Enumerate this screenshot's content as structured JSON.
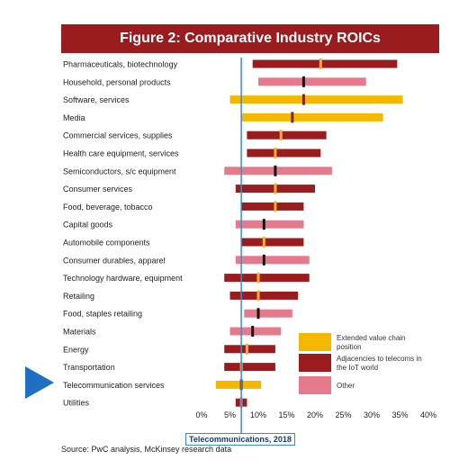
{
  "chart_data": {
    "type": "range-bar",
    "title": "Figure 2: Comparative Industry ROICs",
    "xlim": [
      0,
      40
    ],
    "xticks": [
      "0%",
      "5%",
      "10%",
      "15%",
      "20%",
      "25%",
      "30%",
      "35%",
      "40%"
    ],
    "xtick_values": [
      0,
      5,
      10,
      15,
      20,
      25,
      30,
      35,
      40
    ],
    "reference_line": {
      "value": 7,
      "label": "Telecommunications,  2018"
    },
    "categories": [
      {
        "name": "Pharmaceuticals, biotechnology",
        "low": 9,
        "high": 34.5,
        "median": 21,
        "type": "adjacent",
        "median_color": "#f2b134"
      },
      {
        "name": "Household,  personal products",
        "low": 10,
        "high": 29,
        "median": 18,
        "type": "other",
        "median_color": "#111111"
      },
      {
        "name": "Software, services",
        "low": 5,
        "high": 35.5,
        "median": 18,
        "type": "extended",
        "median_color": "#8a1a1a"
      },
      {
        "name": "Media",
        "low": 7,
        "high": 32,
        "median": 16,
        "type": "extended",
        "median_color": "#8a1a1a"
      },
      {
        "name": "Commercial services, supplies",
        "low": 8,
        "high": 22,
        "median": 14,
        "type": "adjacent",
        "median_color": "#f2b134"
      },
      {
        "name": "Health care equipment, services",
        "low": 8,
        "high": 21,
        "median": 13,
        "type": "adjacent",
        "median_color": "#f2b134"
      },
      {
        "name": "Semiconductors, s/c equipment",
        "low": 4,
        "high": 23,
        "median": 13,
        "type": "other",
        "median_color": "#111111"
      },
      {
        "name": "Consumer services",
        "low": 6,
        "high": 20,
        "median": 13,
        "type": "adjacent",
        "median_color": "#f2b134"
      },
      {
        "name": "Food, beverage, tobacco",
        "low": 7,
        "high": 18,
        "median": 13,
        "type": "adjacent",
        "median_color": "#f2b134"
      },
      {
        "name": "Capital goods",
        "low": 6,
        "high": 18,
        "median": 11,
        "type": "other",
        "median_color": "#111111"
      },
      {
        "name": "Automobile components",
        "low": 7,
        "high": 18,
        "median": 11,
        "type": "adjacent",
        "median_color": "#f2b134"
      },
      {
        "name": "Consumer durables, apparel",
        "low": 6,
        "high": 19,
        "median": 11,
        "type": "other",
        "median_color": "#111111"
      },
      {
        "name": "Technology hardware, equipment",
        "low": 4,
        "high": 19,
        "median": 10,
        "type": "adjacent",
        "median_color": "#f2b134"
      },
      {
        "name": "Retailing",
        "low": 5,
        "high": 17,
        "median": 10,
        "type": "adjacent",
        "median_color": "#f2b134"
      },
      {
        "name": "Food, staples retailing",
        "low": 7.5,
        "high": 16,
        "median": 10,
        "type": "other",
        "median_color": "#111111"
      },
      {
        "name": "Materials",
        "low": 5,
        "high": 14,
        "median": 9,
        "type": "other",
        "median_color": "#111111"
      },
      {
        "name": "Energy",
        "low": 4,
        "high": 13,
        "median": 8,
        "type": "adjacent",
        "median_color": "#f2b134"
      },
      {
        "name": "Transportation",
        "low": 4,
        "high": 13,
        "median": 7,
        "type": "adjacent",
        "median_color": "#f2b134"
      },
      {
        "name": "Telecommunication services",
        "low": 2.5,
        "high": 10.5,
        "median": 7,
        "type": "extended",
        "median_color": "#8a1a1a"
      },
      {
        "name": "Utilities",
        "low": 6,
        "high": 8,
        "median": 7,
        "type": "adjacent",
        "median_color": "#e07a8a"
      }
    ],
    "legend": [
      {
        "label": "Extended value chain position",
        "color": "#f5b800"
      },
      {
        "label": "Adjacencies to telecoms in the IoT world",
        "color": "#9b1c1f"
      },
      {
        "label": "Other",
        "color": "#e57a8d"
      }
    ],
    "colors": {
      "extended": "#f5b800",
      "adjacent": "#9b1c1f",
      "other": "#e57a8d",
      "reference": "#3a8fc9",
      "arrow": "#1f6fc2"
    }
  },
  "source": "Source: PwC analysis, McKinsey research data"
}
